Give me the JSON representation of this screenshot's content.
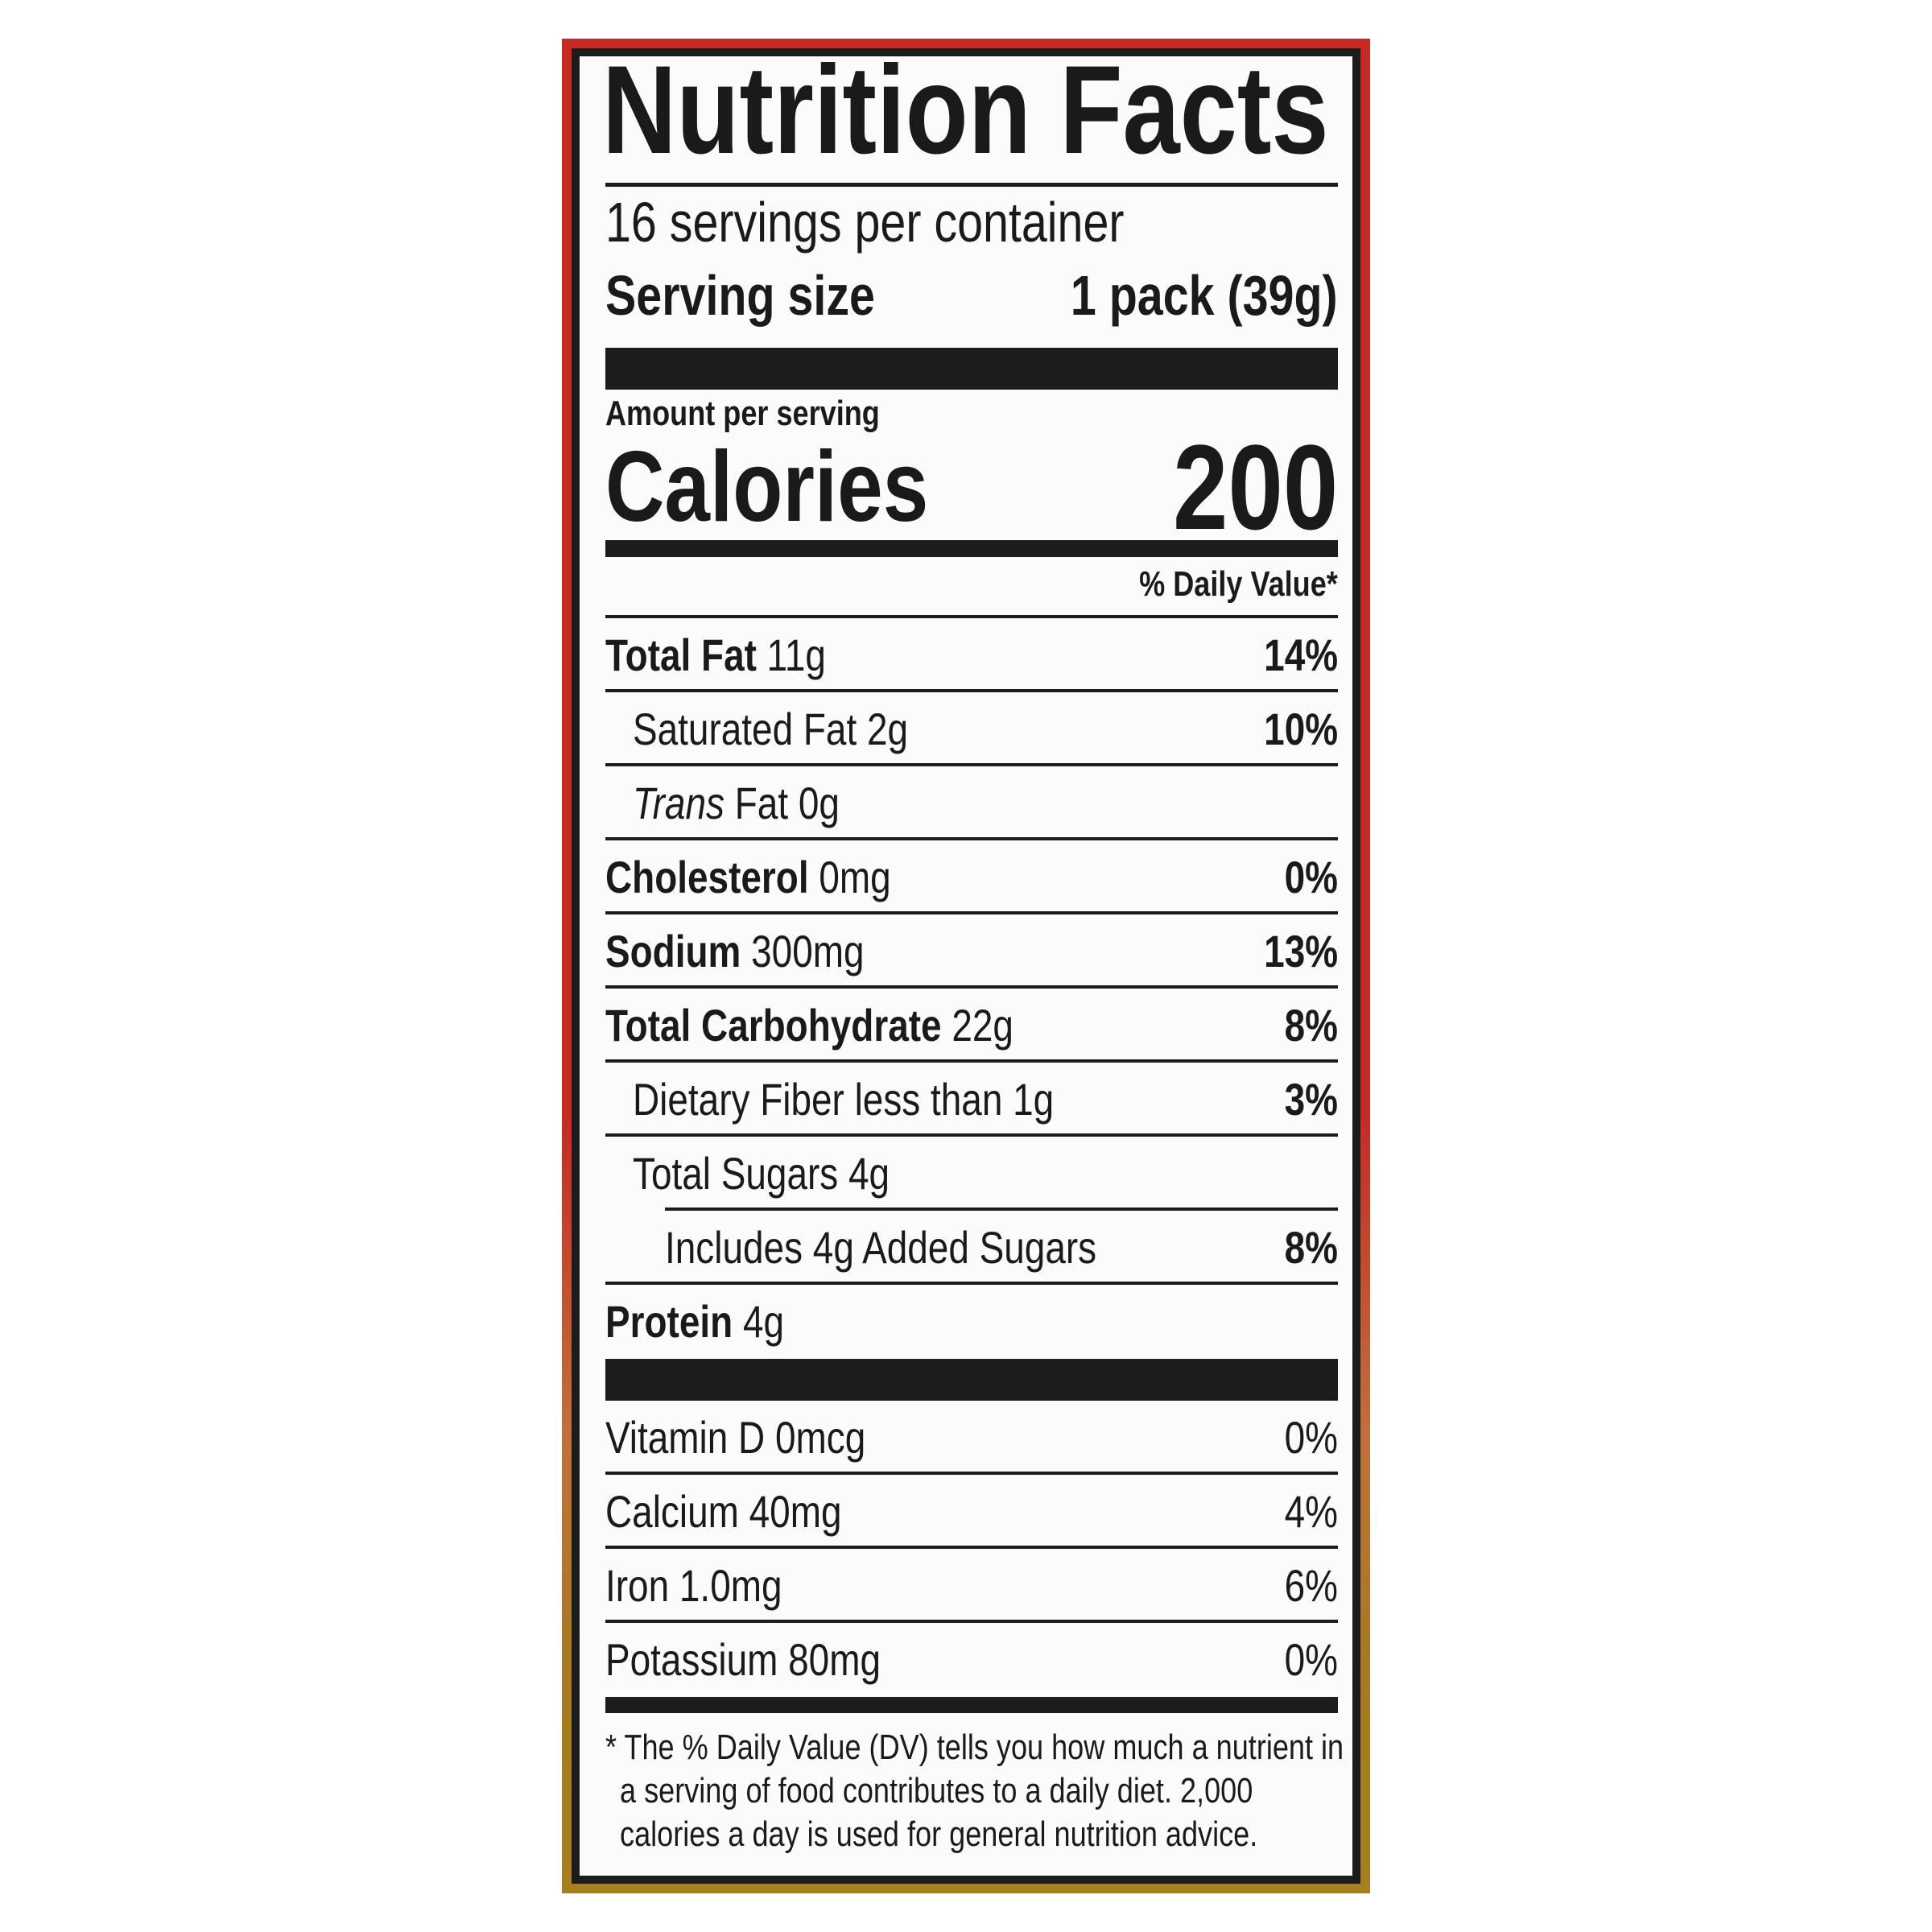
{
  "title": "Nutrition Facts",
  "servings_per_container": "16 servings per container",
  "serving_size": {
    "label": "Serving size",
    "value": "1 pack (39g)"
  },
  "amount_per_serving": "Amount per serving",
  "calories": {
    "label": "Calories",
    "value": "200"
  },
  "daily_value_header": "% Daily Value*",
  "nutrients": [
    {
      "name": "Total Fat",
      "amount": "11g",
      "dv": "14%",
      "bold": true,
      "indent": 0
    },
    {
      "name": "Saturated Fat",
      "amount": "2g",
      "dv": "10%",
      "bold": false,
      "indent": 1
    },
    {
      "name": "Trans",
      "amount": "Fat 0g",
      "dv": "",
      "bold": false,
      "italic": true,
      "indent": 1
    },
    {
      "name": "Cholesterol",
      "amount": "0mg",
      "dv": "0%",
      "bold": true,
      "indent": 0
    },
    {
      "name": "Sodium",
      "amount": "300mg",
      "dv": "13%",
      "bold": true,
      "indent": 0
    },
    {
      "name": "Total Carbohydrate",
      "amount": "22g",
      "dv": "8%",
      "bold": true,
      "indent": 0
    },
    {
      "name": "Dietary Fiber",
      "amount": "less than 1g",
      "dv": "3%",
      "bold": false,
      "indent": 1
    },
    {
      "name": "Total Sugars",
      "amount": "4g",
      "dv": "",
      "bold": false,
      "indent": 1
    },
    {
      "name": "Includes 4g Added Sugars",
      "amount": "",
      "dv": "8%",
      "bold": false,
      "indent": 2
    },
    {
      "name": "Protein",
      "amount": "4g",
      "dv": "",
      "bold": true,
      "indent": 0
    }
  ],
  "vitamins": [
    {
      "name": "Vitamin D",
      "amount": "0mcg",
      "dv": "0%"
    },
    {
      "name": "Calcium",
      "amount": "40mg",
      "dv": "4%"
    },
    {
      "name": "Iron",
      "amount": "1.0mg",
      "dv": "6%"
    },
    {
      "name": "Potassium",
      "amount": "80mg",
      "dv": "0%"
    }
  ],
  "footnote": [
    "* The % Daily Value (DV) tells you how much a nutrient in",
    "a serving of food contributes to a daily diet. 2,000",
    "calories a day is used for general nutrition advice."
  ],
  "colors": {
    "frame_top": "#c62a24",
    "frame_bottom": "#a4801e",
    "ink": "#1c1c1c",
    "panel": "#fbfbfb"
  }
}
